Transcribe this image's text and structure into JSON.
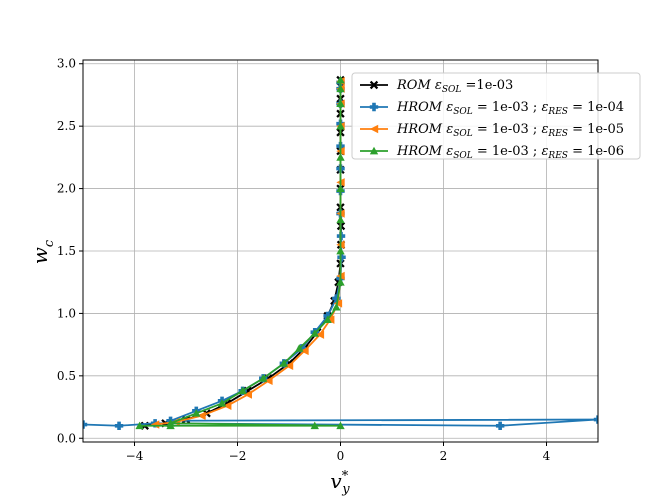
{
  "chart_data": {
    "type": "line",
    "xlabel": "v*y",
    "ylabel": "wc",
    "xlim": [
      -5,
      5
    ],
    "ylim": [
      -0.03,
      3.03
    ],
    "grid": true,
    "legend_position": "top-right",
    "xticks": [
      "−4",
      "−2",
      "0",
      "2",
      "4"
    ],
    "xtick_values": [
      -4,
      -2,
      0,
      2,
      4
    ],
    "yticks": [
      "0.0",
      "0.5",
      "1.0",
      "1.5",
      "2.0",
      "2.5",
      "3.0"
    ],
    "ytick_values": [
      0,
      0.5,
      1.0,
      1.5,
      2.0,
      2.5,
      3.0
    ],
    "series": [
      {
        "name": "ROM εSOL =1e-03",
        "legend_html": "<tspan class='leg-i'>ROM ε</tspan><tspan class='leg-i' font-size='9' dy='3'>SOL</tspan><tspan dy='-3'> =1e-03</tspan>",
        "color": "#000000",
        "marker": "X",
        "x": [
          -3.8,
          -3.4,
          -3.0,
          -2.6,
          -2.2,
          -1.8,
          -1.4,
          -1.0,
          -0.7,
          -0.45,
          -0.25,
          -0.12,
          -0.04,
          0.0,
          0.01,
          0.01,
          0.0,
          0.0,
          0.0,
          0.0,
          0.0,
          0.0,
          0.0,
          0.0,
          0.0
        ],
        "y": [
          0.1,
          0.12,
          0.15,
          0.2,
          0.28,
          0.38,
          0.48,
          0.6,
          0.72,
          0.85,
          0.98,
          1.1,
          1.25,
          1.4,
          1.55,
          1.7,
          1.85,
          2.0,
          2.15,
          2.3,
          2.45,
          2.6,
          2.72,
          2.82,
          2.87
        ]
      },
      {
        "name": "HROM εSOL = 1e-03 ; εRES = 1e-04",
        "legend_html": "<tspan class='leg-i'>HROM ε</tspan><tspan class='leg-i' font-size='9' dy='3'>SOL</tspan><tspan dy='-3'> = 1e-03 ; </tspan><tspan class='leg-i'>ε</tspan><tspan class='leg-i' font-size='9' dy='3'>RES</tspan><tspan dy='-3'> = 1e-04</tspan>",
        "color": "#1f77b4",
        "marker": "P",
        "x": [
          -5.0,
          -4.3,
          -3.6,
          3.1,
          5.0,
          -3.3,
          -2.8,
          -2.3,
          -1.9,
          -1.5,
          -1.1,
          -0.75,
          -0.5,
          -0.25,
          -0.08,
          0.0,
          0.02,
          0.01,
          0.0,
          0.0,
          0.0,
          0.0,
          0.0,
          0.0,
          0.0,
          0.0
        ],
        "y": [
          0.11,
          0.1,
          0.12,
          0.1,
          0.15,
          0.14,
          0.22,
          0.3,
          0.38,
          0.48,
          0.6,
          0.72,
          0.85,
          0.98,
          1.12,
          1.28,
          1.45,
          1.62,
          1.8,
          1.98,
          2.16,
          2.34,
          2.52,
          2.68,
          2.8,
          2.85
        ]
      },
      {
        "name": "HROM εSOL = 1e-03 ; εRES = 1e-05",
        "legend_html": "<tspan class='leg-i'>HROM ε</tspan><tspan class='leg-i' font-size='9' dy='3'>SOL</tspan><tspan dy='-3'> = 1e-03 ; </tspan><tspan class='leg-i'>ε</tspan><tspan class='leg-i' font-size='9' dy='3'>RES</tspan><tspan dy='-3'> = 1e-05</tspan>",
        "color": "#ff7f0e",
        "marker": "<",
        "x": [
          -3.6,
          -3.2,
          -2.7,
          -2.2,
          -1.8,
          -1.4,
          -1.0,
          -0.7,
          -0.4,
          -0.2,
          -0.05,
          0.0,
          0.0,
          0.0,
          0.0,
          0.0,
          0.0,
          0.0,
          0.0,
          0.0
        ],
        "y": [
          0.11,
          0.13,
          0.18,
          0.26,
          0.35,
          0.46,
          0.58,
          0.7,
          0.83,
          0.95,
          1.08,
          1.3,
          1.55,
          1.8,
          2.05,
          2.3,
          2.5,
          2.68,
          2.8,
          2.86
        ]
      },
      {
        "name": "HROM εSOL = 1e-03 ; εRES = 1e-06",
        "legend_html": "<tspan class='leg-i'>HROM ε</tspan><tspan class='leg-i' font-size='9' dy='3'>SOL</tspan><tspan dy='-3'> = 1e-03 ; </tspan><tspan class='leg-i'>ε</tspan><tspan class='leg-i' font-size='9' dy='3'>RES</tspan><tspan dy='-3'> = 1e-06</tspan>",
        "color": "#2ca02c",
        "marker": "^",
        "x": [
          -3.9,
          -3.3,
          -0.5,
          0.0,
          -3.3,
          -2.8,
          -2.3,
          -1.9,
          -1.5,
          -1.1,
          -0.8,
          -0.5,
          -0.25,
          -0.08,
          0.0,
          0.0,
          0.0,
          0.0,
          0.0,
          0.0,
          0.0,
          0.0,
          0.0
        ],
        "y": [
          0.1,
          0.1,
          0.1,
          0.1,
          0.12,
          0.2,
          0.28,
          0.38,
          0.48,
          0.6,
          0.72,
          0.84,
          0.95,
          1.05,
          1.25,
          1.5,
          1.75,
          2.0,
          2.25,
          2.5,
          2.68,
          2.8,
          2.87
        ]
      }
    ]
  }
}
